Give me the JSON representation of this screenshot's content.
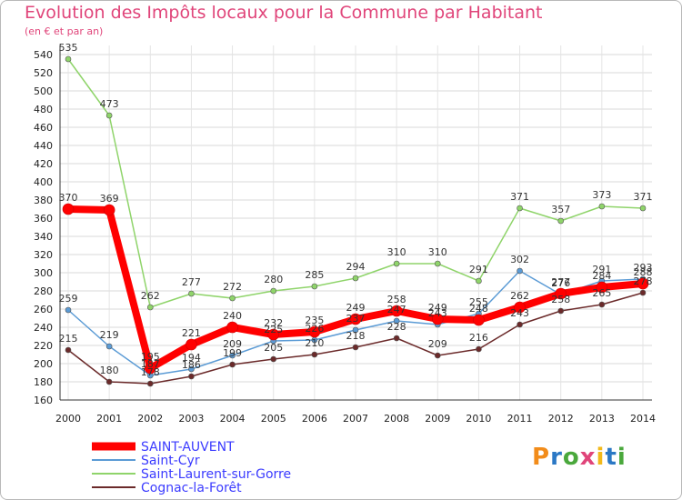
{
  "title": "Evolution des Impôts locaux pour la Commune par Habitant",
  "subtitle": "(en € et par an)",
  "brand": {
    "text": "Proxiti",
    "colors": [
      "#f28c1a",
      "#2b78c5",
      "#4aa83c",
      "#e0457a",
      "#f2b91a",
      "#2b78c5",
      "#4aa83c"
    ]
  },
  "chart_data": {
    "type": "line",
    "title": "Evolution des Impôts locaux pour la Commune par Habitant",
    "subtitle": "(en € et par an)",
    "x": [
      "2000",
      "2001",
      "2002",
      "2003",
      "2004",
      "2005",
      "2006",
      "2007",
      "2008",
      "2009",
      "2010",
      "2011",
      "2012",
      "2013",
      "2014"
    ],
    "ylim": [
      160,
      540
    ],
    "yticks": [
      160,
      180,
      200,
      220,
      240,
      260,
      280,
      300,
      320,
      340,
      360,
      380,
      400,
      420,
      440,
      460,
      480,
      500,
      520,
      540
    ],
    "grid": "horizontal",
    "legend": "bottom-left",
    "series": [
      {
        "name": "SAINT-AUVENT",
        "color": "#ff0000",
        "legend_color": "#3b3bff",
        "width": 8,
        "values": [
          370,
          369,
          195,
          221,
          240,
          232,
          235,
          249,
          258,
          249,
          248,
          262,
          277,
          284,
          288
        ],
        "labels": [
          "370",
          "369",
          "195",
          "221",
          "240",
          "232",
          "235",
          "249",
          "258",
          "249",
          "248",
          "262",
          "277",
          "284",
          "288"
        ]
      },
      {
        "name": "Saint-Cyr",
        "color": "#5b9bd5",
        "legend_color": "#3b3bff",
        "width": 1.5,
        "values": [
          259,
          219,
          187,
          194,
          209,
          225,
          226,
          237,
          247,
          243,
          255,
          302,
          276,
          291,
          293
        ],
        "labels": [
          "259",
          "219",
          "187",
          "194",
          "209",
          "225",
          "226",
          "237",
          "247",
          "243",
          "255",
          "302",
          "276",
          "291",
          "293"
        ]
      },
      {
        "name": "Saint-Laurent-sur-Gorre",
        "color": "#8fd46a",
        "legend_color": "#3b3bff",
        "width": 1.5,
        "values": [
          535,
          473,
          262,
          277,
          272,
          280,
          285,
          294,
          310,
          310,
          291,
          371,
          357,
          373,
          371
        ],
        "labels": [
          "535",
          "473",
          "262",
          "277",
          "272",
          "280",
          "285",
          "294",
          "310",
          "310",
          "291",
          "371",
          "357",
          "373",
          "371"
        ]
      },
      {
        "name": "Cognac-la-Forêt",
        "color": "#6b2a2a",
        "legend_color": "#3b3bff",
        "width": 1.5,
        "values": [
          215,
          180,
          178,
          186,
          199,
          205,
          210,
          218,
          228,
          209,
          216,
          243,
          258,
          265,
          278
        ],
        "labels": [
          "215",
          "180",
          "178",
          "186",
          "199",
          "205",
          "210",
          "218",
          "228",
          "209",
          "216",
          "243",
          "258",
          "265",
          "278"
        ]
      }
    ]
  }
}
